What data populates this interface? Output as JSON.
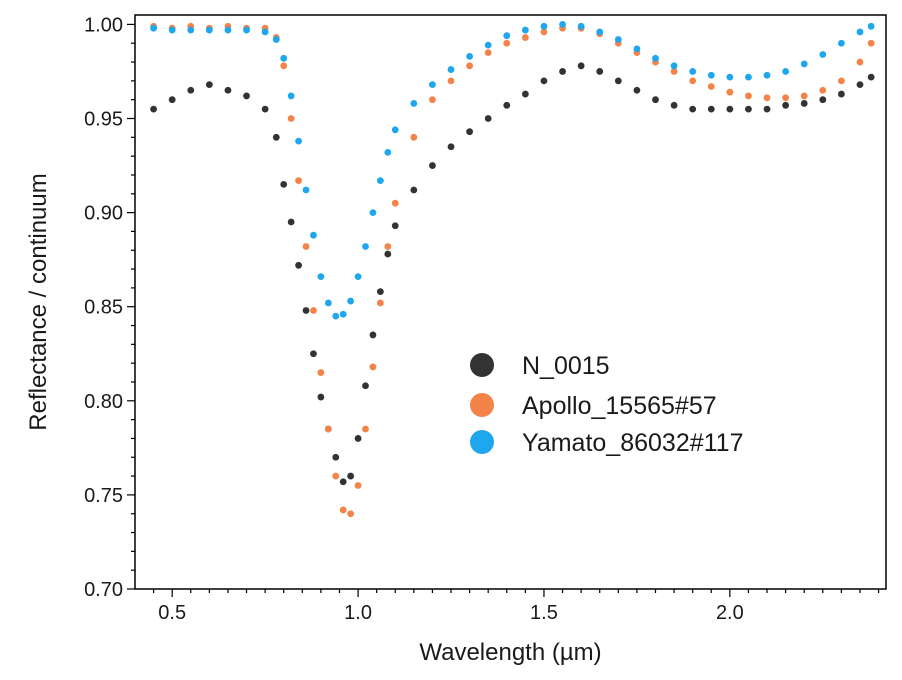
{
  "chart_data": {
    "type": "scatter",
    "title": "",
    "xlabel": "Wavelength (µm)",
    "ylabel": "Reflectance / continuum",
    "xlim": [
      0.4,
      2.42
    ],
    "ylim": [
      0.7,
      1.005
    ],
    "xticks": [
      0.5,
      1.0,
      1.5,
      2.0
    ],
    "xtick_labels": [
      "0.5",
      "1.0",
      "1.5",
      "2.0"
    ],
    "yticks": [
      0.7,
      0.75,
      0.8,
      0.85,
      0.9,
      0.95,
      1.0
    ],
    "ytick_labels": [
      "0.70",
      "0.75",
      "0.80",
      "0.85",
      "0.90",
      "0.95",
      "1.00"
    ],
    "grid": false,
    "legend_position": "center-right",
    "series": [
      {
        "name": "N_0015",
        "color": "#333333",
        "x": [
          0.45,
          0.5,
          0.55,
          0.6,
          0.65,
          0.7,
          0.75,
          0.78,
          0.8,
          0.82,
          0.84,
          0.86,
          0.88,
          0.9,
          0.92,
          0.94,
          0.96,
          0.98,
          1.0,
          1.02,
          1.04,
          1.06,
          1.08,
          1.1,
          1.15,
          1.2,
          1.25,
          1.3,
          1.35,
          1.4,
          1.45,
          1.5,
          1.55,
          1.6,
          1.65,
          1.7,
          1.75,
          1.8,
          1.85,
          1.9,
          1.95,
          2.0,
          2.05,
          2.1,
          2.15,
          2.2,
          2.25,
          2.3,
          2.35,
          2.38
        ],
        "y": [
          0.955,
          0.96,
          0.965,
          0.968,
          0.965,
          0.962,
          0.955,
          0.94,
          0.915,
          0.895,
          0.872,
          0.848,
          0.825,
          0.802,
          0.785,
          0.77,
          0.757,
          0.76,
          0.78,
          0.808,
          0.835,
          0.858,
          0.878,
          0.893,
          0.912,
          0.925,
          0.935,
          0.943,
          0.95,
          0.957,
          0.963,
          0.97,
          0.975,
          0.978,
          0.975,
          0.97,
          0.965,
          0.96,
          0.957,
          0.955,
          0.955,
          0.955,
          0.955,
          0.955,
          0.957,
          0.958,
          0.96,
          0.963,
          0.968,
          0.972
        ]
      },
      {
        "name": "Apollo_15565#57",
        "color": "#f4834a",
        "x": [
          0.45,
          0.5,
          0.55,
          0.6,
          0.65,
          0.7,
          0.75,
          0.78,
          0.8,
          0.82,
          0.84,
          0.86,
          0.88,
          0.9,
          0.92,
          0.94,
          0.96,
          0.98,
          1.0,
          1.02,
          1.04,
          1.06,
          1.08,
          1.1,
          1.15,
          1.2,
          1.25,
          1.3,
          1.35,
          1.4,
          1.45,
          1.5,
          1.55,
          1.6,
          1.65,
          1.7,
          1.75,
          1.8,
          1.85,
          1.9,
          1.95,
          2.0,
          2.05,
          2.1,
          2.15,
          2.2,
          2.25,
          2.3,
          2.35,
          2.38
        ],
        "y": [
          0.999,
          0.998,
          0.999,
          0.998,
          0.999,
          0.998,
          0.998,
          0.993,
          0.978,
          0.95,
          0.917,
          0.882,
          0.848,
          0.815,
          0.785,
          0.76,
          0.742,
          0.74,
          0.755,
          0.785,
          0.818,
          0.852,
          0.882,
          0.905,
          0.94,
          0.96,
          0.97,
          0.978,
          0.985,
          0.99,
          0.993,
          0.996,
          0.998,
          0.998,
          0.995,
          0.99,
          0.985,
          0.98,
          0.975,
          0.97,
          0.967,
          0.964,
          0.962,
          0.961,
          0.961,
          0.962,
          0.965,
          0.97,
          0.98,
          0.99
        ]
      },
      {
        "name": "Yamato_86032#117",
        "color": "#1ea7ee",
        "x": [
          0.45,
          0.5,
          0.55,
          0.6,
          0.65,
          0.7,
          0.75,
          0.78,
          0.8,
          0.82,
          0.84,
          0.86,
          0.88,
          0.9,
          0.92,
          0.94,
          0.96,
          0.98,
          1.0,
          1.02,
          1.04,
          1.06,
          1.08,
          1.1,
          1.15,
          1.2,
          1.25,
          1.3,
          1.35,
          1.4,
          1.45,
          1.5,
          1.55,
          1.6,
          1.65,
          1.7,
          1.75,
          1.8,
          1.85,
          1.9,
          1.95,
          2.0,
          2.05,
          2.1,
          2.15,
          2.2,
          2.25,
          2.3,
          2.35,
          2.38
        ],
        "y": [
          0.998,
          0.997,
          0.997,
          0.997,
          0.997,
          0.997,
          0.996,
          0.992,
          0.982,
          0.962,
          0.938,
          0.912,
          0.888,
          0.866,
          0.852,
          0.845,
          0.846,
          0.853,
          0.866,
          0.882,
          0.9,
          0.917,
          0.932,
          0.944,
          0.958,
          0.968,
          0.976,
          0.983,
          0.989,
          0.994,
          0.997,
          0.999,
          1.0,
          0.999,
          0.996,
          0.992,
          0.987,
          0.982,
          0.978,
          0.975,
          0.973,
          0.972,
          0.972,
          0.973,
          0.975,
          0.979,
          0.984,
          0.99,
          0.996,
          0.999
        ]
      }
    ]
  }
}
